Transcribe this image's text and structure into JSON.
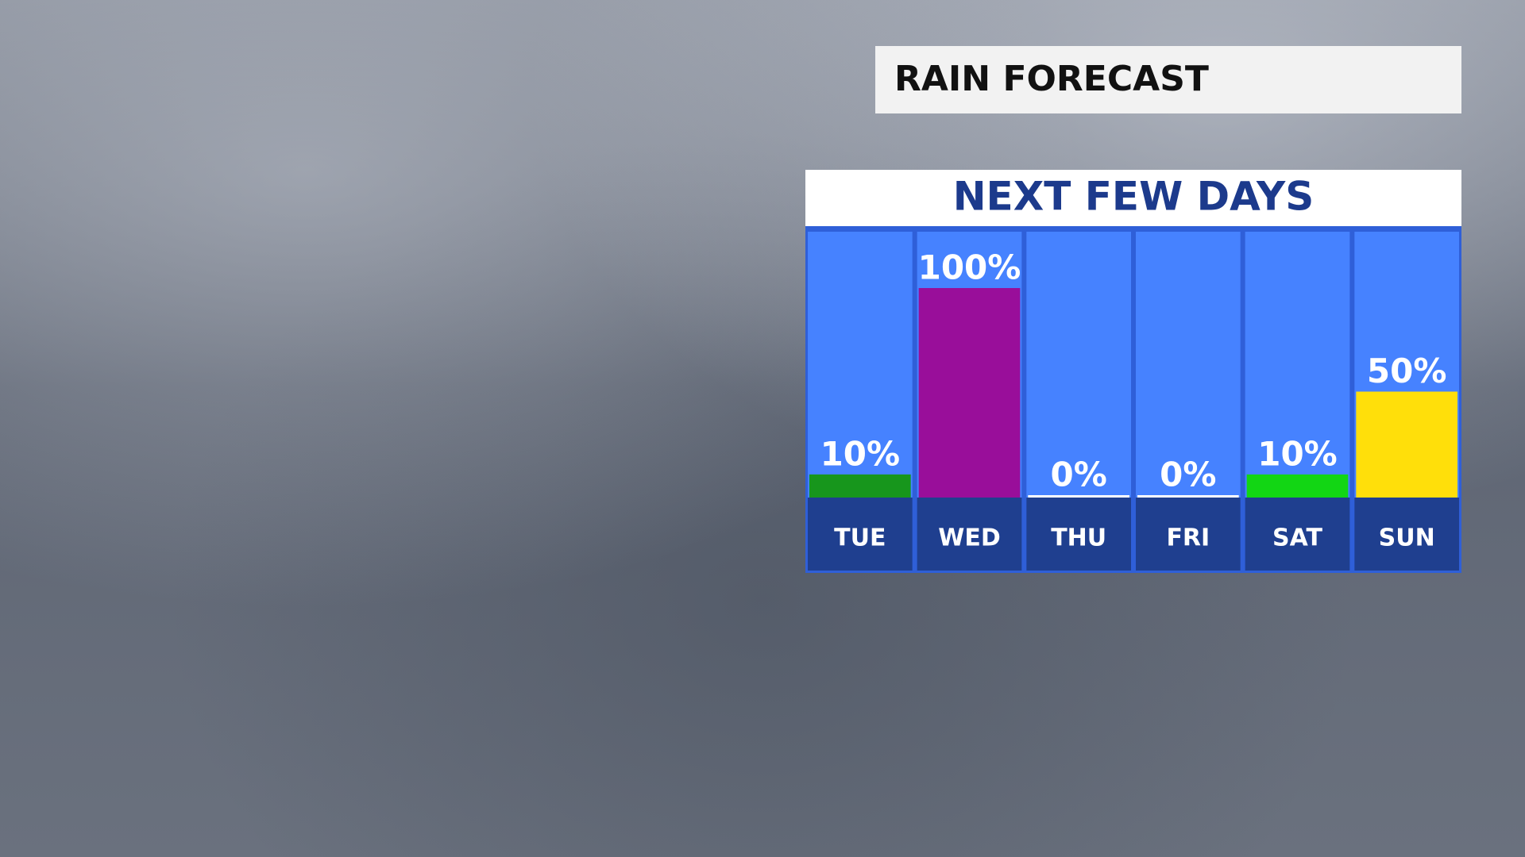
{
  "chart_data": {
    "type": "bar",
    "title": "RAIN FORECAST",
    "subtitle": "NEXT FEW DAYS",
    "categories": [
      "TUE",
      "WED",
      "THU",
      "FRI",
      "SAT",
      "SUN"
    ],
    "values": [
      10,
      100,
      0,
      0,
      10,
      50
    ],
    "value_labels": [
      "10%",
      "100%",
      "0%",
      "0%",
      "10%",
      "50%"
    ],
    "colors": [
      "#17961c",
      "#990e9a",
      "#ffffff",
      "#ffffff",
      "#12d614",
      "#ffdf0a"
    ],
    "ylim": [
      0,
      100
    ]
  }
}
